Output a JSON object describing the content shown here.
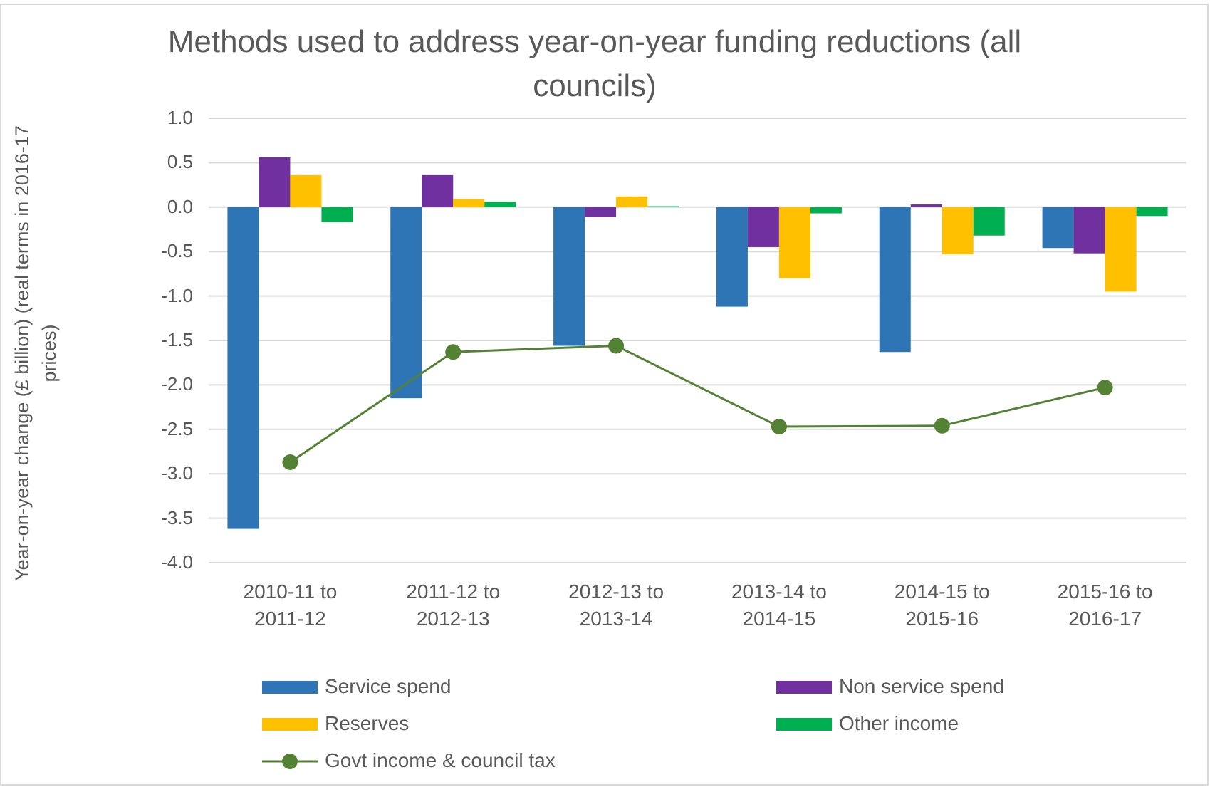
{
  "chart_data": {
    "type": "bar",
    "title": "Methods used to address year-on-year funding reductions (all councils)",
    "y_label": "Year-on-year change (£ billion) (real terms in 2016-17 prices)",
    "categories": [
      "2010-11 to 2011-12",
      "2011-12 to 2012-13",
      "2012-13 to 2013-14",
      "2013-14 to 2014-15",
      "2014-15 to 2015-16",
      "2015-16 to 2016-17"
    ],
    "series": [
      {
        "name": "Service spend",
        "type": "bar",
        "color": "#2e75b6",
        "values": [
          -3.62,
          -2.15,
          -1.56,
          -1.12,
          -1.63,
          -0.46
        ]
      },
      {
        "name": "Non service spend",
        "type": "bar",
        "color": "#7030a0",
        "values": [
          0.56,
          0.36,
          -0.11,
          -0.45,
          0.03,
          -0.52
        ]
      },
      {
        "name": "Reserves",
        "type": "bar",
        "color": "#ffc000",
        "values": [
          0.36,
          0.09,
          0.12,
          -0.8,
          -0.53,
          -0.95
        ]
      },
      {
        "name": "Other income",
        "type": "bar",
        "color": "#00b050",
        "values": [
          -0.17,
          0.06,
          0.01,
          -0.07,
          -0.32,
          -0.1
        ]
      },
      {
        "name": "Govt income & council tax",
        "type": "line",
        "color": "#548235",
        "values": [
          -2.87,
          -1.63,
          -1.56,
          -2.47,
          -2.46,
          -2.03
        ]
      }
    ],
    "ylim": [
      -4,
      1
    ],
    "yticks": [
      {
        "value": 1,
        "label": "1.0"
      },
      0.5,
      {
        "value": 0,
        "label": "0.0"
      },
      -0.5,
      {
        "value": -1,
        "label": "-1.0"
      },
      -1.5,
      {
        "value": -2,
        "label": "-2.0"
      },
      -2.5,
      {
        "value": -3,
        "label": "-3.0"
      },
      -3.5,
      {
        "value": -4,
        "label": "-4.0"
      }
    ],
    "grid": true
  }
}
